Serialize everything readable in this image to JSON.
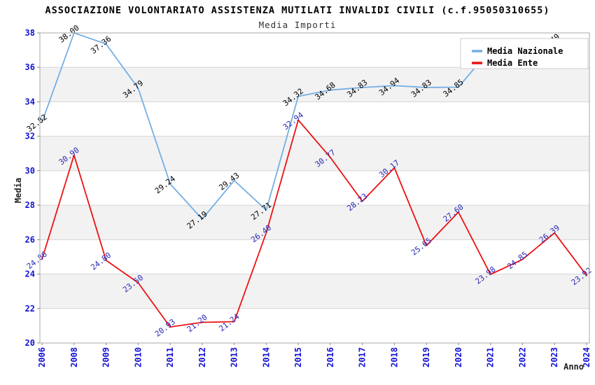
{
  "chart_data": {
    "type": "line",
    "title": "ASSOCIAZIONE VOLONTARIATO ASSISTENZA MUTILATI INVALIDI CIVILI (c.f.95050310655)",
    "subtitle": "Media Importi",
    "xlabel": "Anno",
    "ylabel": "Media",
    "ylim": [
      20,
      38
    ],
    "ytick_step": 2,
    "grid": "horizontal",
    "alternating_band_fill": "#f2f2f2",
    "gridline_color": "#d6d6d6",
    "plot_border_color": "#aaaaaa",
    "axis_tick_label_color": "#1212d6",
    "legend_position": "top-right",
    "categories": [
      "2006",
      "2008",
      "2009",
      "2010",
      "2011",
      "2012",
      "2013",
      "2014",
      "2015",
      "2016",
      "2017",
      "2018",
      "2019",
      "2020",
      "2021",
      "2022",
      "2023",
      "2024"
    ],
    "series": [
      {
        "name": "Media Nazionale",
        "color": "#74afe4",
        "label_color": "#000000",
        "values": [
          32.82,
          38.0,
          37.36,
          34.79,
          29.24,
          27.19,
          29.43,
          27.71,
          34.32,
          34.68,
          34.83,
          34.94,
          34.83,
          34.85,
          37.05,
          null,
          37.49,
          null
        ]
      },
      {
        "name": "Media Ente",
        "color": "#ee1111",
        "label_color": "#2929b4",
        "values": [
          24.86,
          30.9,
          24.8,
          23.5,
          20.93,
          21.2,
          21.24,
          26.4,
          32.94,
          30.77,
          28.23,
          30.17,
          25.65,
          27.6,
          23.98,
          24.85,
          26.39,
          23.92
        ]
      }
    ]
  }
}
